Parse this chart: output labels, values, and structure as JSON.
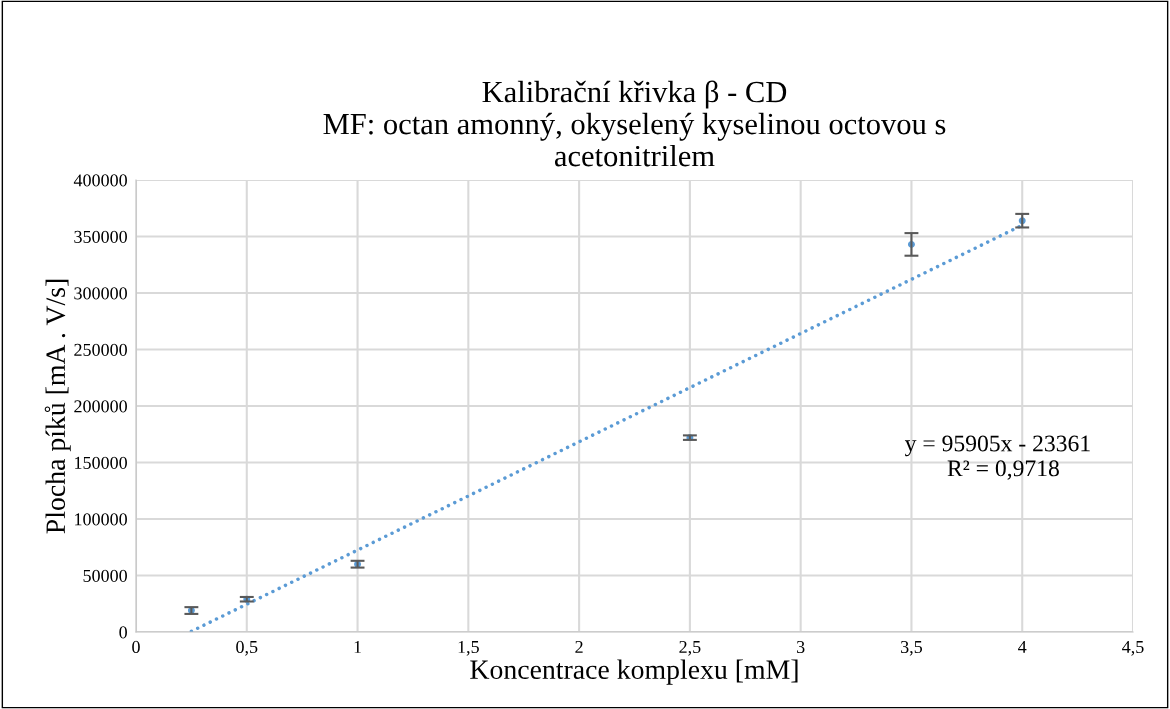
{
  "chart_data": {
    "type": "scatter",
    "title": "Kalibrační křivka β - CD\nMF: octan amonný, okyselený kyselinou octovou s\nacetonitrilem",
    "xlabel": "Koncentrace komplexu [mM]",
    "ylabel": "Plocha píků [mA . V/s]",
    "x": [
      0.25,
      0.5,
      1,
      2.5,
      3.5,
      4
    ],
    "series": [
      {
        "color": "#5b9bd5",
        "marker": "circle",
        "values": [
          19000,
          29000,
          60000,
          172000,
          343000,
          364000
        ],
        "errors": [
          3000,
          2000,
          3000,
          2000,
          10000,
          6000
        ]
      },
      {
        "type": "line",
        "color": "#5b9bd5",
        "marker": "none",
        "line_style": "dotted",
        "x": [
          0.25,
          4
        ],
        "values": [
          600,
          360000
        ]
      }
    ],
    "annotations": [
      "y = 95905x - 23361",
      "R² = 0,9718"
    ],
    "xlim": [
      0,
      4.5
    ],
    "xticks": [
      0,
      {
        "value": 0.5,
        "label": "0,5"
      },
      1,
      {
        "value": 1.5,
        "label": "1,5"
      },
      2,
      {
        "value": 2.5,
        "label": "2,5"
      },
      3,
      {
        "value": 3.5,
        "label": "3,5"
      },
      4,
      {
        "value": 4.5,
        "label": "4,5"
      }
    ],
    "ylim": [
      0,
      400000
    ],
    "yticks": [
      0,
      50000,
      100000,
      150000,
      200000,
      250000,
      300000,
      350000,
      400000
    ],
    "grid": true,
    "legend": false
  }
}
